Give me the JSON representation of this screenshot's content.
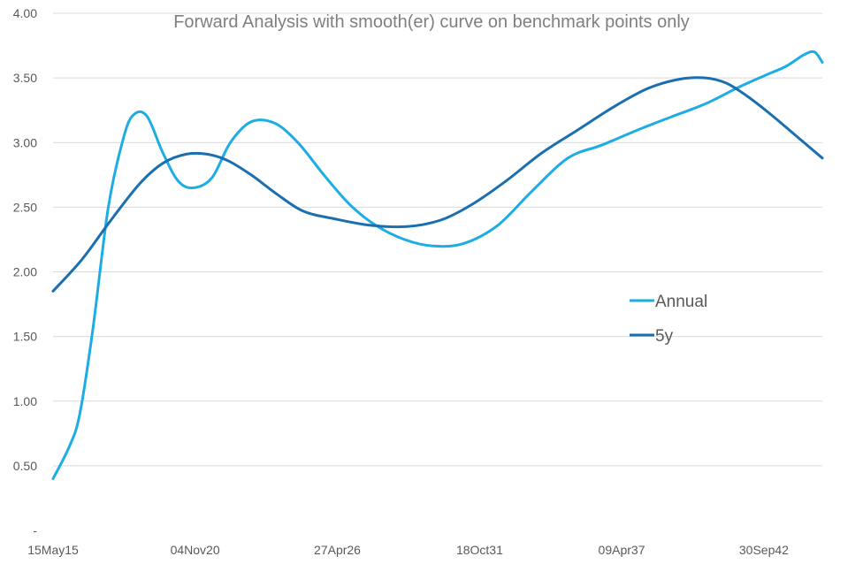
{
  "chart_data": {
    "type": "line",
    "title": "Forward Analysis with smooth(er) curve on benchmark points only",
    "xlabel": "",
    "ylabel": "",
    "x_tick_labels": [
      "15May15",
      "04Nov20",
      "27Apr26",
      "18Oct31",
      "09Apr37",
      "30Sep42"
    ],
    "y_tick_labels": [
      "-",
      "0.50",
      "1.00",
      "1.50",
      "2.00",
      "2.50",
      "3.00",
      "3.50",
      "4.00"
    ],
    "x_tick_years": [
      2015.37,
      2020.84,
      2026.32,
      2031.8,
      2037.27,
      2042.75
    ],
    "xlim": [
      2015.37,
      2045.0
    ],
    "ylim": [
      0,
      4
    ],
    "grid": "horizontal",
    "legend_position": "right-center",
    "series": [
      {
        "name": "Annual",
        "color": "#1cade4",
        "x": [
          2015.37,
          2016.0,
          2016.4,
          2016.9,
          2017.5,
          2018.1,
          2018.5,
          2019.0,
          2019.6,
          2020.2,
          2020.8,
          2021.5,
          2022.2,
          2023.0,
          2023.9,
          2024.8,
          2025.8,
          2026.8,
          2027.8,
          2028.9,
          2030.0,
          2031.2,
          2032.5,
          2033.8,
          2035.2,
          2036.5,
          2037.8,
          2039.2,
          2040.5,
          2041.8,
          2042.8,
          2043.6,
          2044.3,
          2044.7,
          2045.0
        ],
        "y": [
          0.4,
          0.65,
          0.9,
          1.55,
          2.5,
          3.05,
          3.22,
          3.2,
          2.92,
          2.7,
          2.65,
          2.73,
          3.0,
          3.16,
          3.15,
          3.0,
          2.75,
          2.52,
          2.36,
          2.25,
          2.2,
          2.22,
          2.36,
          2.62,
          2.88,
          2.98,
          3.09,
          3.2,
          3.3,
          3.43,
          3.52,
          3.59,
          3.68,
          3.7,
          3.62
        ]
      },
      {
        "name": "5y",
        "color": "#1a6fb0",
        "x": [
          2015.37,
          2016.5,
          2017.6,
          2018.7,
          2019.6,
          2020.5,
          2021.3,
          2022.1,
          2023.0,
          2024.0,
          2025.0,
          2026.2,
          2027.6,
          2029.0,
          2030.3,
          2031.5,
          2032.8,
          2034.2,
          2035.6,
          2037.0,
          2038.3,
          2039.5,
          2040.5,
          2041.3,
          2042.1,
          2043.0,
          2044.0,
          2045.0
        ],
        "y": [
          1.85,
          2.1,
          2.4,
          2.68,
          2.84,
          2.91,
          2.91,
          2.86,
          2.75,
          2.6,
          2.47,
          2.41,
          2.36,
          2.35,
          2.4,
          2.52,
          2.7,
          2.92,
          3.1,
          3.28,
          3.42,
          3.49,
          3.5,
          3.46,
          3.36,
          3.22,
          3.05,
          2.88
        ]
      }
    ]
  }
}
